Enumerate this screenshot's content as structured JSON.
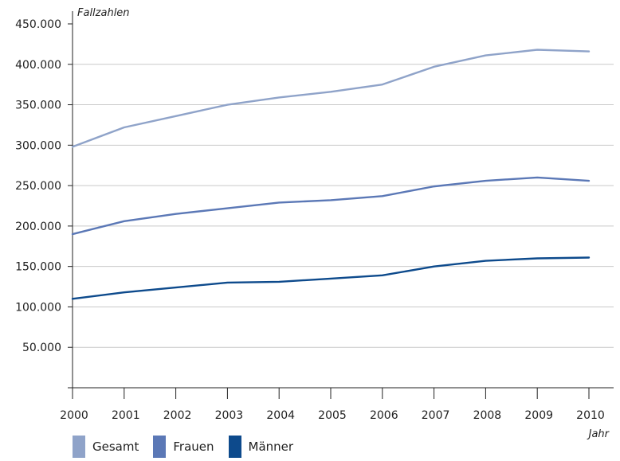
{
  "chart_data": {
    "type": "line",
    "ylabel": "Fallzahlen",
    "xlabel": "Jahr",
    "ylim": [
      0,
      450000
    ],
    "y_ticks": [
      "450.000",
      "400.000",
      "350.000",
      "300.000",
      "250.000",
      "200.000",
      "150.000",
      "100.000",
      "50.000"
    ],
    "y_tick_values": [
      450000,
      400000,
      350000,
      300000,
      250000,
      200000,
      150000,
      100000,
      50000
    ],
    "x": [
      "2000",
      "2001",
      "2002",
      "2003",
      "2004",
      "2005",
      "2006",
      "2007",
      "2008",
      "2009",
      "2010"
    ],
    "grid": true,
    "legend_position": "bottom-left",
    "series": [
      {
        "name": "Gesamt",
        "color": "#8fa3c9",
        "values": [
          298000,
          322000,
          336000,
          350000,
          359000,
          366000,
          375000,
          397000,
          411000,
          418000,
          416000
        ]
      },
      {
        "name": "Frauen",
        "color": "#5b78b6",
        "values": [
          190000,
          206000,
          215000,
          222000,
          229000,
          232000,
          237000,
          249000,
          256000,
          260000,
          256000
        ]
      },
      {
        "name": "Männer",
        "color": "#0d4a8c",
        "values": [
          110000,
          118000,
          124000,
          130000,
          131000,
          135000,
          139000,
          150000,
          157000,
          160000,
          161000
        ]
      }
    ]
  }
}
